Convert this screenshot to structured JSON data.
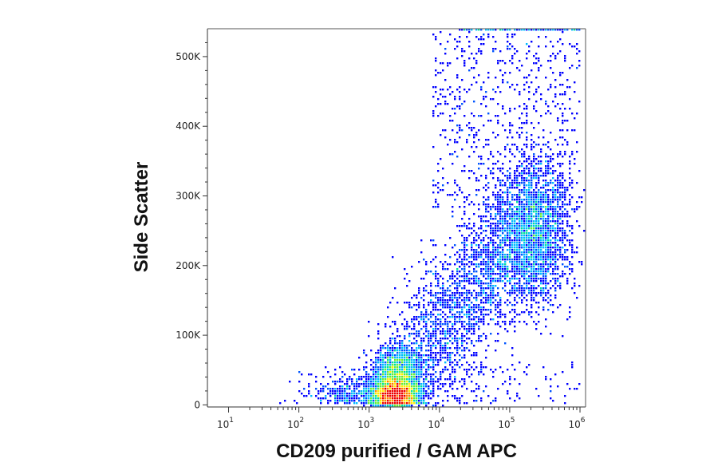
{
  "chart_data": {
    "type": "scatter",
    "plot_style": "density-colored flow cytometry dot plot",
    "xlabel": "CD209 purified / GAM APC",
    "ylabel": "Side Scatter",
    "x_scale": "log",
    "y_scale": "linear",
    "xlim": [
      5,
      1200000
    ],
    "ylim": [
      -3000,
      540000
    ],
    "x_ticks": [
      {
        "value": 10,
        "base": "10",
        "exp": "1"
      },
      {
        "value": 100,
        "base": "10",
        "exp": "2"
      },
      {
        "value": 1000,
        "base": "10",
        "exp": "3"
      },
      {
        "value": 10000,
        "base": "10",
        "exp": "4"
      },
      {
        "value": 100000,
        "base": "10",
        "exp": "5"
      },
      {
        "value": 1000000,
        "base": "10",
        "exp": "6"
      }
    ],
    "y_ticks": [
      {
        "value": 0,
        "label": "0"
      },
      {
        "value": 100000,
        "label": "100K"
      },
      {
        "value": 200000,
        "label": "200K"
      },
      {
        "value": 300000,
        "label": "300K"
      },
      {
        "value": 400000,
        "label": "400K"
      },
      {
        "value": 500000,
        "label": "500K"
      }
    ],
    "grid": false,
    "legend": "none",
    "density_colors": [
      "#0000ff",
      "#0055ff",
      "#00bbff",
      "#00e0a0",
      "#66ee33",
      "#ffee00",
      "#ff8800",
      "#ee0000"
    ],
    "populations": [
      {
        "description": "dense low-SSC cluster",
        "x_center": 2500,
        "y_center": 15000,
        "peak_density": "high"
      },
      {
        "description": "secondary low-SSC cluster",
        "x_center": 2500,
        "y_center": 50000,
        "peak_density": "medium"
      },
      {
        "description": "diagonal spread",
        "x_from": 5000,
        "x_to": 100000,
        "y_from": 50000,
        "y_to": 250000,
        "peak_density": "low"
      },
      {
        "description": "high-SSC positive cluster",
        "x_center": 250000,
        "y_center": 250000,
        "peak_density": "medium-low"
      }
    ]
  }
}
